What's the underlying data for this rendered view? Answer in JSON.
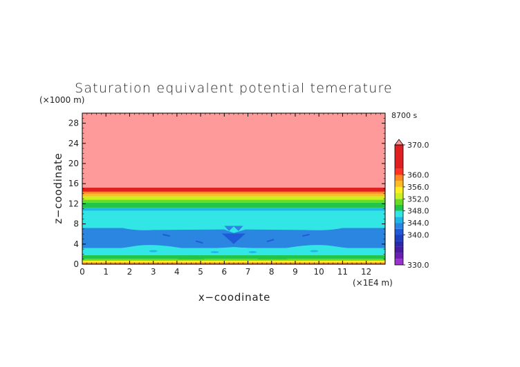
{
  "chart_data": {
    "type": "heatmap",
    "title": "Saturation equivalent potential temerature",
    "time_label": "8700 s",
    "xlabel": "x−coodinate",
    "ylabel": "z−coodinate",
    "x_unit": "(×1E4 m)",
    "y_unit": "(×1000 m)",
    "xlim": [
      0,
      12.8
    ],
    "ylim": [
      0,
      30
    ],
    "x_ticks": [
      "0",
      "1",
      "2",
      "3",
      "4",
      "5",
      "6",
      "7",
      "8",
      "9",
      "10",
      "11",
      "12"
    ],
    "y_ticks": [
      "0",
      "4",
      "8",
      "12",
      "16",
      "20",
      "24",
      "28"
    ],
    "colorbar": {
      "labels": [
        "370.0",
        "360.0",
        "356.0",
        "352.0",
        "348.0",
        "344.0",
        "340.0",
        "330.0"
      ],
      "min": 330,
      "max": 370,
      "levels": [
        {
          "value": 330,
          "color": "#9933cc"
        },
        {
          "value": 332,
          "color": "#6a1fb0"
        },
        {
          "value": 334,
          "color": "#4a1aa0"
        },
        {
          "value": 336,
          "color": "#2a2aa8"
        },
        {
          "value": 338,
          "color": "#1b3fc0"
        },
        {
          "value": 340,
          "color": "#1f5ad8"
        },
        {
          "value": 342,
          "color": "#2a86e0"
        },
        {
          "value": 344,
          "color": "#1fb8e6"
        },
        {
          "value": 346,
          "color": "#33e6e6"
        },
        {
          "value": 348,
          "color": "#22c44a"
        },
        {
          "value": 350,
          "color": "#66dd22"
        },
        {
          "value": 352,
          "color": "#ccee22"
        },
        {
          "value": 354,
          "color": "#ffee22"
        },
        {
          "value": 356,
          "color": "#ffbb22"
        },
        {
          "value": 358,
          "color": "#ff8822"
        },
        {
          "value": 360,
          "color": "#ff3322"
        },
        {
          "value": 362,
          "color": "#e02020"
        },
        {
          "value": 370,
          "color": "#ff9a9a"
        }
      ]
    },
    "bands": [
      {
        "z0": 0.0,
        "z1": 0.35,
        "value": 358
      },
      {
        "z0": 0.35,
        "z1": 0.7,
        "value": 354
      },
      {
        "z0": 0.7,
        "z1": 1.1,
        "value": 350
      },
      {
        "z0": 1.1,
        "z1": 1.8,
        "value": 348
      },
      {
        "z0": 1.8,
        "z1": 3.2,
        "value": 346
      },
      {
        "z0": 3.2,
        "z1": 7.2,
        "value": 342
      },
      {
        "z0": 7.2,
        "z1": 10.6,
        "value": 346
      },
      {
        "z0": 10.6,
        "z1": 11.2,
        "value": 344
      },
      {
        "z0": 11.2,
        "z1": 12.2,
        "value": 348
      },
      {
        "z0": 12.2,
        "z1": 12.8,
        "value": 350
      },
      {
        "z0": 12.8,
        "z1": 13.5,
        "value": 352
      },
      {
        "z0": 13.5,
        "z1": 14.0,
        "value": 356
      },
      {
        "z0": 14.0,
        "z1": 14.4,
        "value": 358
      },
      {
        "z0": 14.4,
        "z1": 15.2,
        "value": 362
      },
      {
        "z0": 15.2,
        "z1": 30.0,
        "value": 370
      }
    ]
  }
}
